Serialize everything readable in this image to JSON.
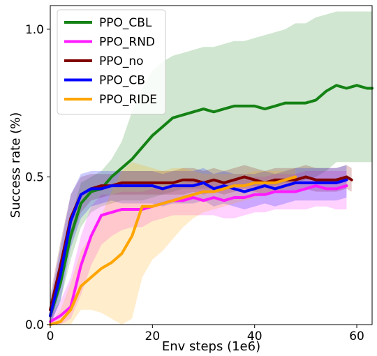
{
  "chart_data": {
    "type": "line",
    "xlabel": "Env steps (1e6)",
    "ylabel": "Success rate (%)",
    "xlim": [
      0,
      63
    ],
    "ylim": [
      0,
      1.08
    ],
    "xticks": [
      0,
      20,
      40,
      60
    ],
    "yticks": [
      0.0,
      0.5,
      1.0
    ],
    "xtick_labels": [
      "0",
      "20",
      "40",
      "60"
    ],
    "ytick_labels": [
      "0.0",
      "0.5",
      "1.0"
    ],
    "legend_position": "upper-left",
    "grid": false,
    "series": [
      {
        "name": "PPO_CBL",
        "color": "#148214",
        "x": [
          0,
          2,
          4,
          6,
          8,
          10,
          12,
          14,
          16,
          18,
          20,
          22,
          24,
          26,
          28,
          30,
          32,
          34,
          36,
          38,
          40,
          42,
          44,
          46,
          48,
          50,
          52,
          54,
          56,
          58,
          60,
          62,
          63
        ],
        "y": [
          0.03,
          0.14,
          0.3,
          0.41,
          0.45,
          0.46,
          0.5,
          0.53,
          0.56,
          0.6,
          0.64,
          0.67,
          0.7,
          0.71,
          0.72,
          0.73,
          0.72,
          0.73,
          0.74,
          0.74,
          0.74,
          0.73,
          0.74,
          0.75,
          0.75,
          0.75,
          0.76,
          0.79,
          0.81,
          0.8,
          0.81,
          0.8,
          0.8
        ],
        "lower": [
          0.0,
          0.08,
          0.22,
          0.33,
          0.38,
          0.4,
          0.41,
          0.42,
          0.42,
          0.42,
          0.43,
          0.44,
          0.45,
          0.46,
          0.46,
          0.46,
          0.46,
          0.46,
          0.47,
          0.47,
          0.47,
          0.47,
          0.47,
          0.48,
          0.48,
          0.49,
          0.5,
          0.52,
          0.55,
          0.55,
          0.55,
          0.55,
          0.55
        ],
        "upper": [
          0.08,
          0.2,
          0.36,
          0.48,
          0.5,
          0.52,
          0.56,
          0.62,
          0.72,
          0.8,
          0.86,
          0.89,
          0.91,
          0.92,
          0.93,
          0.94,
          0.94,
          0.95,
          0.96,
          0.96,
          0.97,
          0.98,
          0.99,
          1.0,
          1.02,
          1.02,
          1.04,
          1.05,
          1.06,
          1.06,
          1.06,
          1.06,
          1.06
        ]
      },
      {
        "name": "PPO_RND",
        "color": "#ff1aff",
        "x": [
          0,
          2,
          4,
          6,
          8,
          10,
          12,
          14,
          16,
          18,
          20,
          22,
          24,
          26,
          28,
          30,
          32,
          34,
          36,
          38,
          40,
          42,
          44,
          46,
          48,
          50,
          52,
          54,
          56,
          58
        ],
        "y": [
          0.01,
          0.03,
          0.06,
          0.2,
          0.3,
          0.37,
          0.38,
          0.39,
          0.39,
          0.39,
          0.4,
          0.41,
          0.42,
          0.42,
          0.43,
          0.42,
          0.43,
          0.42,
          0.43,
          0.43,
          0.44,
          0.44,
          0.45,
          0.45,
          0.45,
          0.46,
          0.47,
          0.46,
          0.46,
          0.47
        ],
        "lower": [
          0.0,
          0.0,
          0.02,
          0.1,
          0.2,
          0.27,
          0.3,
          0.32,
          0.33,
          0.33,
          0.35,
          0.36,
          0.37,
          0.37,
          0.37,
          0.37,
          0.37,
          0.36,
          0.36,
          0.37,
          0.38,
          0.38,
          0.39,
          0.39,
          0.39,
          0.39,
          0.4,
          0.4,
          0.39,
          0.39
        ],
        "upper": [
          0.03,
          0.08,
          0.16,
          0.3,
          0.4,
          0.44,
          0.44,
          0.45,
          0.45,
          0.45,
          0.46,
          0.46,
          0.47,
          0.48,
          0.49,
          0.49,
          0.49,
          0.48,
          0.49,
          0.49,
          0.5,
          0.5,
          0.51,
          0.51,
          0.51,
          0.52,
          0.52,
          0.52,
          0.52,
          0.52
        ]
      },
      {
        "name": "PPO_no",
        "color": "#800000",
        "x": [
          0,
          2,
          4,
          6,
          8,
          10,
          12,
          14,
          16,
          18,
          20,
          22,
          24,
          26,
          28,
          30,
          32,
          34,
          36,
          38,
          40,
          42,
          44,
          46,
          48,
          50,
          52,
          54,
          56,
          58,
          59
        ],
        "y": [
          0.05,
          0.2,
          0.36,
          0.44,
          0.46,
          0.47,
          0.47,
          0.48,
          0.48,
          0.48,
          0.48,
          0.48,
          0.48,
          0.49,
          0.49,
          0.48,
          0.49,
          0.48,
          0.49,
          0.5,
          0.49,
          0.48,
          0.49,
          0.49,
          0.49,
          0.5,
          0.49,
          0.49,
          0.49,
          0.5,
          0.49
        ],
        "lower": [
          0.0,
          0.12,
          0.28,
          0.38,
          0.42,
          0.43,
          0.44,
          0.44,
          0.44,
          0.44,
          0.44,
          0.44,
          0.44,
          0.44,
          0.45,
          0.44,
          0.45,
          0.44,
          0.45,
          0.46,
          0.45,
          0.44,
          0.45,
          0.45,
          0.45,
          0.46,
          0.45,
          0.45,
          0.45,
          0.46,
          0.45
        ],
        "upper": [
          0.1,
          0.28,
          0.44,
          0.5,
          0.51,
          0.51,
          0.51,
          0.52,
          0.52,
          0.52,
          0.52,
          0.52,
          0.52,
          0.53,
          0.53,
          0.52,
          0.53,
          0.52,
          0.53,
          0.54,
          0.53,
          0.52,
          0.53,
          0.53,
          0.53,
          0.54,
          0.53,
          0.53,
          0.53,
          0.54,
          0.53
        ]
      },
      {
        "name": "PPO_CB",
        "color": "#0000ff",
        "x": [
          0,
          2,
          4,
          6,
          8,
          10,
          12,
          14,
          16,
          18,
          20,
          22,
          24,
          26,
          28,
          30,
          32,
          34,
          36,
          38,
          40,
          42,
          44,
          46,
          48,
          50,
          52,
          54,
          56,
          58
        ],
        "y": [
          0.03,
          0.17,
          0.35,
          0.44,
          0.46,
          0.46,
          0.47,
          0.47,
          0.47,
          0.47,
          0.47,
          0.46,
          0.47,
          0.47,
          0.47,
          0.48,
          0.46,
          0.47,
          0.46,
          0.45,
          0.46,
          0.47,
          0.46,
          0.47,
          0.48,
          0.48,
          0.48,
          0.48,
          0.48,
          0.49
        ],
        "lower": [
          0.0,
          0.08,
          0.26,
          0.36,
          0.4,
          0.41,
          0.42,
          0.41,
          0.41,
          0.41,
          0.41,
          0.4,
          0.41,
          0.41,
          0.41,
          0.42,
          0.4,
          0.41,
          0.4,
          0.39,
          0.4,
          0.41,
          0.4,
          0.41,
          0.42,
          0.42,
          0.42,
          0.42,
          0.42,
          0.43
        ],
        "upper": [
          0.08,
          0.26,
          0.44,
          0.51,
          0.52,
          0.52,
          0.52,
          0.52,
          0.52,
          0.52,
          0.52,
          0.51,
          0.52,
          0.52,
          0.52,
          0.53,
          0.51,
          0.52,
          0.51,
          0.51,
          0.51,
          0.52,
          0.51,
          0.52,
          0.53,
          0.53,
          0.53,
          0.53,
          0.53,
          0.54
        ]
      },
      {
        "name": "PPO_RIDE",
        "color": "#ffa500",
        "x": [
          0,
          2,
          4,
          6,
          8,
          10,
          12,
          14,
          16,
          18,
          20,
          22,
          24,
          26,
          28,
          30,
          32,
          34,
          36,
          38,
          40,
          42,
          44,
          46,
          48
        ],
        "y": [
          0.0,
          0.01,
          0.05,
          0.13,
          0.16,
          0.19,
          0.21,
          0.24,
          0.3,
          0.4,
          0.4,
          0.41,
          0.42,
          0.43,
          0.44,
          0.45,
          0.45,
          0.46,
          0.47,
          0.47,
          0.48,
          0.48,
          0.48,
          0.49,
          0.5
        ],
        "lower": [
          0.0,
          0.0,
          0.0,
          0.05,
          0.05,
          0.04,
          0.02,
          0.0,
          0.02,
          0.16,
          0.22,
          0.25,
          0.29,
          0.33,
          0.36,
          0.38,
          0.39,
          0.4,
          0.41,
          0.42,
          0.43,
          0.44,
          0.45,
          0.46,
          0.47
        ],
        "upper": [
          0.0,
          0.05,
          0.14,
          0.25,
          0.3,
          0.37,
          0.45,
          0.52,
          0.55,
          0.54,
          0.53,
          0.52,
          0.53,
          0.53,
          0.52,
          0.51,
          0.51,
          0.51,
          0.51,
          0.51,
          0.52,
          0.52,
          0.52,
          0.52,
          0.53
        ]
      }
    ]
  }
}
